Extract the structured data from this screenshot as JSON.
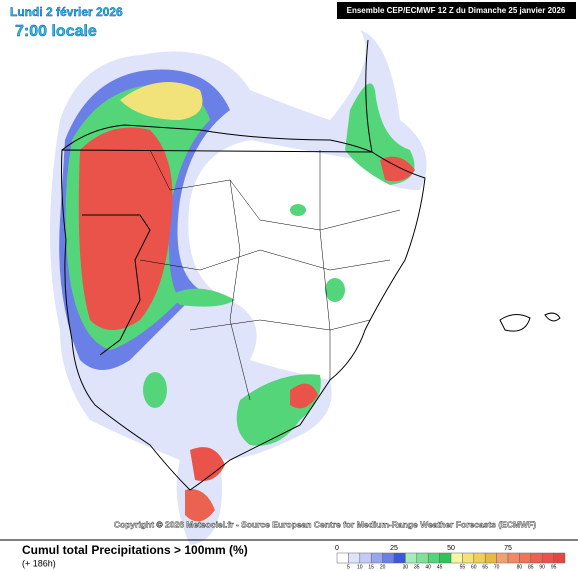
{
  "header": {
    "date": "Lundi 2 février 2026",
    "time": "7:00 locale",
    "run": "Ensemble CEP/ECMWF 12 Z du Dimanche 25 janvier 2026"
  },
  "copyright": "Copyright © 2026 Meteociel.fr - Source European Centre for Medium-Range Weather Forecasts (ECMWF)",
  "footer": {
    "title": "Cumul total Precipitations > 100mm (%)",
    "subtitle": "(+ 186h)"
  },
  "legend": {
    "colors": [
      "#ffffff",
      "#dfe4fb",
      "#c3cbf6",
      "#98a6ef",
      "#6b80e6",
      "#3b57dc",
      "#a6ecb7",
      "#7fe29a",
      "#55d57a",
      "#2ec35c",
      "#f6f6a0",
      "#f2e27a",
      "#efce5a",
      "#ecb845",
      "#f2a070",
      "#f08a62",
      "#ee7558",
      "#ec6250",
      "#e9534a",
      "#e54640"
    ],
    "major_labels": [
      "0",
      "25",
      "50",
      "75"
    ],
    "minor_labels": [
      "5",
      "10",
      "15",
      "20",
      "30",
      "35",
      "40",
      "45",
      "55",
      "60",
      "65",
      "70",
      "80",
      "85",
      "90",
      "95"
    ]
  }
}
